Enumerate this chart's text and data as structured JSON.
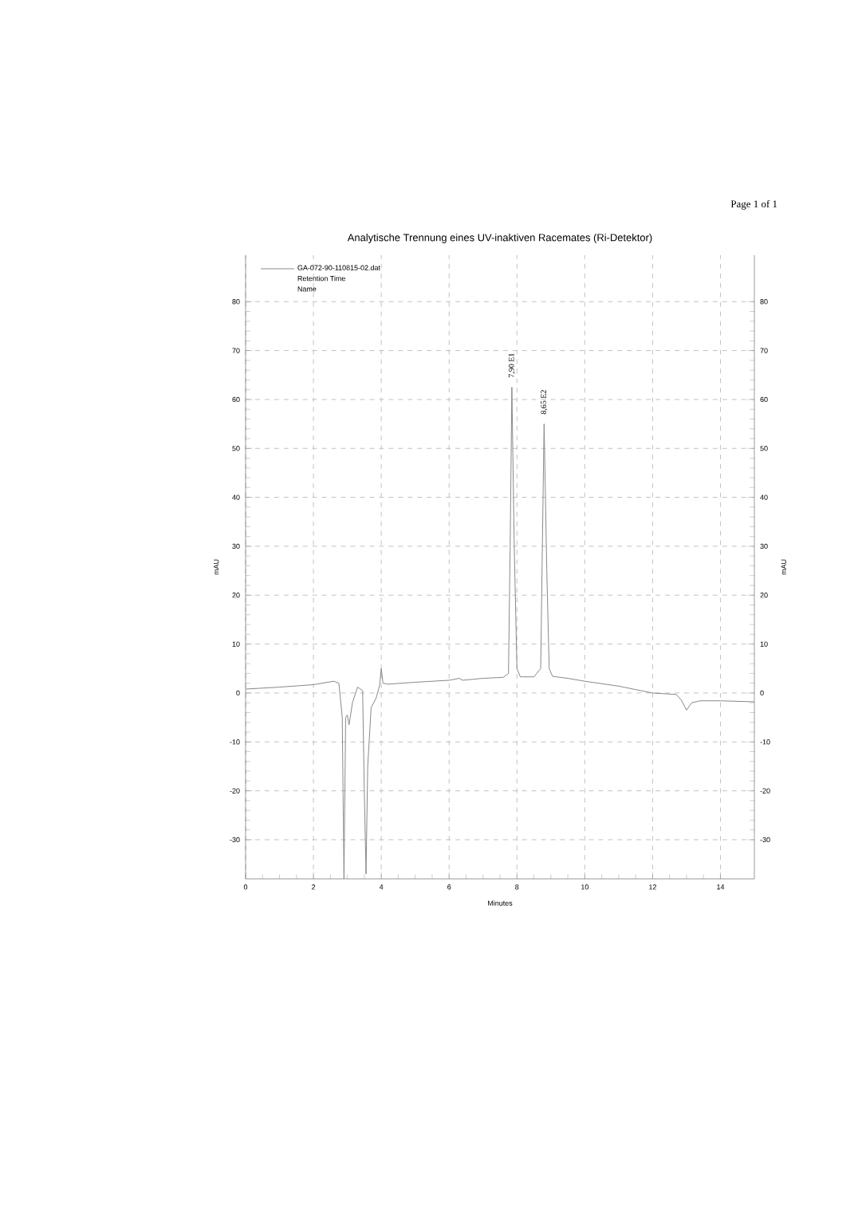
{
  "chart_data": {
    "type": "line",
    "title": "Analytische Trennung eines UV-inaktiven Racemates (Ri-Detektor)",
    "xlabel": "Minutes",
    "ylabel": "mAU",
    "y2label": "mAU",
    "xlim": [
      0,
      15
    ],
    "ylim": [
      -38,
      89.5
    ],
    "y2lim": [
      -38,
      89.5
    ],
    "xticks": [
      0,
      2,
      4,
      6,
      8,
      10,
      12,
      14
    ],
    "yticks": [
      -30,
      -20,
      -10,
      0,
      10,
      20,
      30,
      40,
      50,
      60,
      70,
      80
    ],
    "y2ticks": [
      -30,
      -20,
      -10,
      0,
      10,
      20,
      30,
      40,
      50,
      60,
      70,
      80
    ],
    "grid": true,
    "legend": "top left",
    "annotations": [
      "Page 1 of 1",
      "Retention Time",
      "Name",
      {
        "text": "7,90  E1",
        "x": 7.85,
        "y": 62.5
      },
      {
        "text": "8,65  E2",
        "x": 8.8,
        "y": 55
      }
    ],
    "series": [
      {
        "name": "GA-072-90-110815-02.dat",
        "color": "#888888",
        "x": [
          0,
          1,
          2,
          2.6,
          2.75,
          2.85,
          2.9,
          2.95,
          3.0,
          3.05,
          3.15,
          3.3,
          3.45,
          3.5,
          3.55,
          3.6,
          3.7,
          3.85,
          3.95,
          4.0,
          4.05,
          4.2,
          5,
          6,
          6.3,
          6.4,
          7,
          7.6,
          7.75,
          7.8,
          7.85,
          7.92,
          8.0,
          8.1,
          8.5,
          8.7,
          8.75,
          8.8,
          8.88,
          8.95,
          9.05,
          9.5,
          10,
          11,
          12,
          12.7,
          12.85,
          13.0,
          13.15,
          13.4,
          14,
          15
        ],
        "values": [
          0.8,
          1.2,
          1.7,
          2.4,
          2.0,
          -5,
          -38,
          -5,
          -4.5,
          -6.5,
          -2,
          1.2,
          0.5,
          -20,
          -37,
          -15,
          -3,
          -1,
          1.5,
          5.0,
          2.0,
          1.8,
          2.2,
          2.6,
          3.0,
          2.6,
          3.0,
          3.2,
          4,
          30,
          62.5,
          30,
          5,
          3.3,
          3.3,
          5,
          30,
          55,
          25,
          5,
          3.4,
          3,
          2.4,
          1.4,
          0.0,
          -0.3,
          -1.5,
          -3.5,
          -2,
          -1.6,
          -1.6,
          -1.8
        ]
      }
    ]
  }
}
